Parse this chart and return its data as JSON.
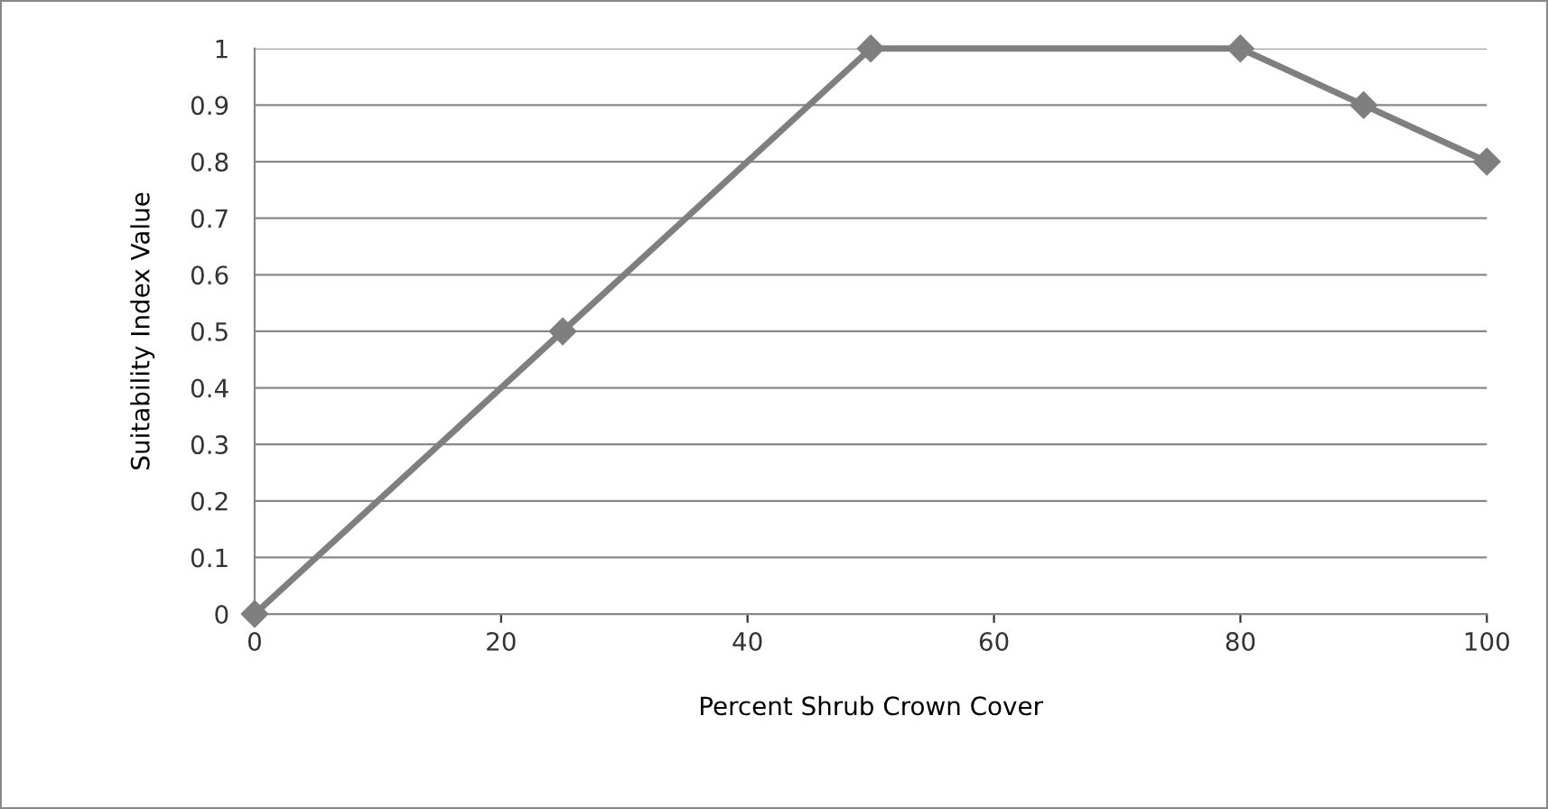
{
  "chart_data": {
    "type": "line",
    "xlabel": "Percent Shrub Crown Cover",
    "ylabel": "Suitability Index Value",
    "x": [
      0,
      25,
      50,
      80,
      90,
      100
    ],
    "series": [
      {
        "color": "#7f7f7f",
        "values": [
          0,
          0.5,
          1,
          1,
          0.9,
          0.8
        ]
      }
    ],
    "xlim": [
      0,
      100
    ],
    "xticks": [
      0,
      20,
      40,
      60,
      80,
      100
    ],
    "ylim": [
      0,
      1
    ],
    "yticks": [
      0,
      0.1,
      0.2,
      0.3,
      0.4,
      0.5,
      0.6,
      0.7,
      0.8,
      0.9,
      1
    ],
    "grid": "y",
    "marker": "diamond",
    "line_style": "solid",
    "legend": false
  }
}
